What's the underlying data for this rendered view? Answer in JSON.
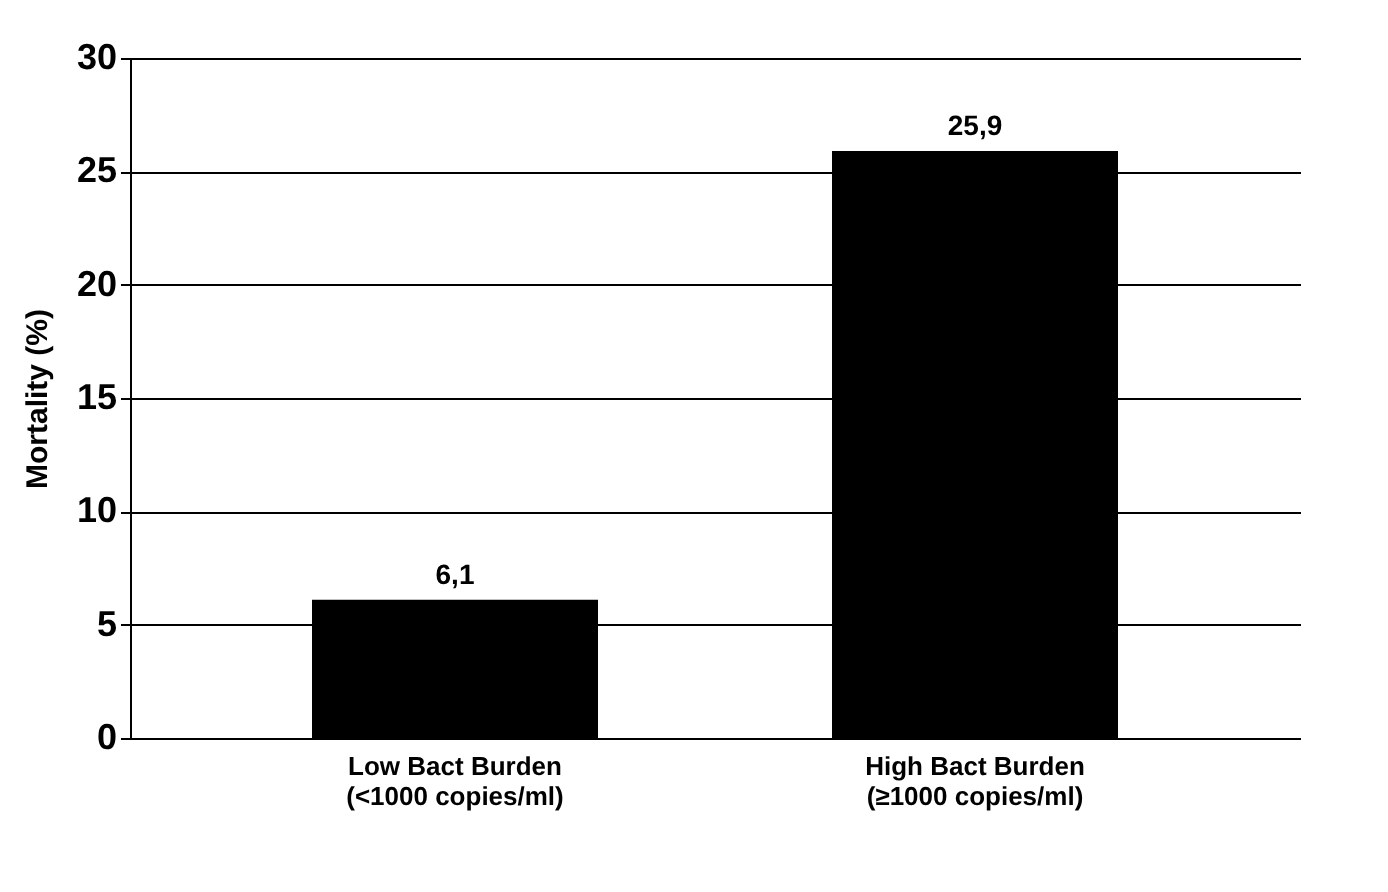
{
  "chart_data": {
    "type": "bar",
    "ylabel": "Mortality (%)",
    "categories": [
      "Low Bact Burden\n(<1000 copies/ml)",
      "High Bact Burden\n(≥1000 copies/ml)"
    ],
    "values": [
      6.1,
      25.9
    ],
    "value_labels": [
      "6,1",
      "25,9"
    ],
    "color": "#000000",
    "ylim": [
      0,
      30
    ],
    "yticks": [
      0,
      5,
      10,
      15,
      20,
      25,
      30
    ],
    "grid": "y"
  }
}
